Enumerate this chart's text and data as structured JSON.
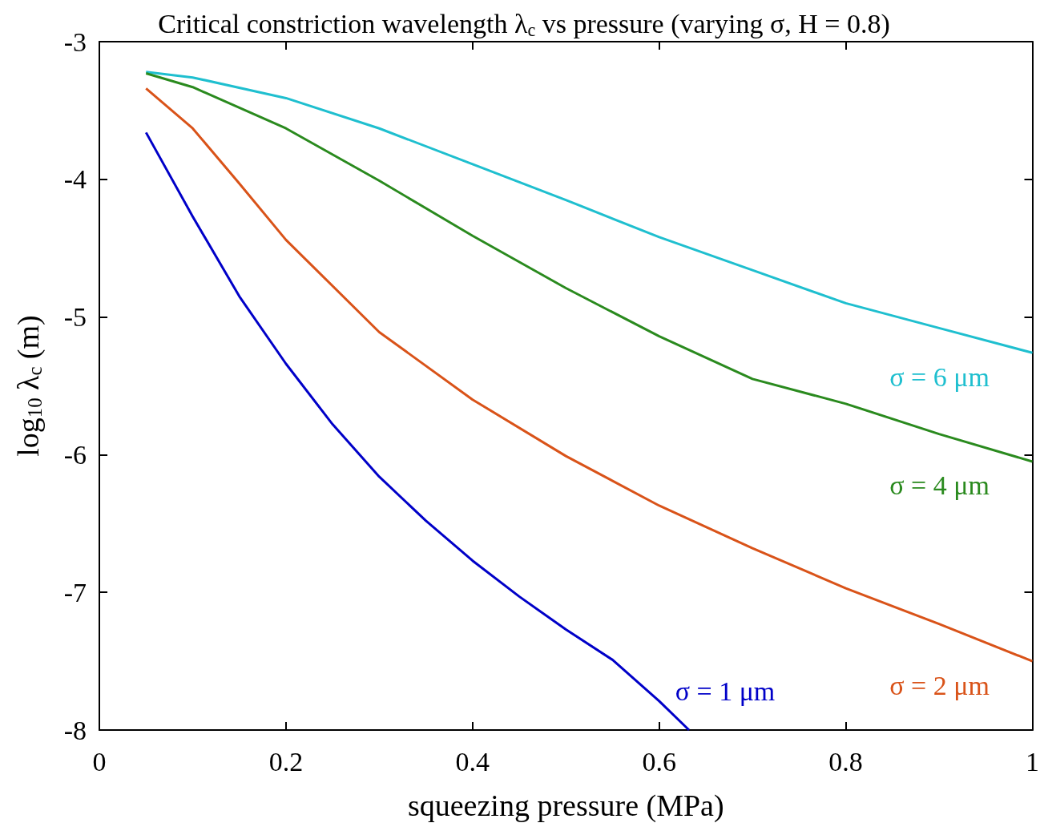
{
  "chart_data": {
    "type": "line",
    "title": "Critical constriction wavelength λ$_{c}$ vs pressure (varying σ, H = 0.8)",
    "xlabel": "squeezing pressure (MPa)",
    "ylabel": "log$_{10}$ λ$_{c}$ (m)",
    "xlim": [
      0,
      1
    ],
    "xticks": [
      0,
      0.2,
      0.4,
      0.6,
      0.8,
      1
    ],
    "ylim": [
      -8,
      -3
    ],
    "yticks": [
      -8,
      -7,
      -6,
      -5,
      -4,
      -3
    ],
    "grid": false,
    "series": [
      {
        "name": "σ = 6 μm",
        "color": "#1fbfcf",
        "x": [
          0.05,
          0.1,
          0.2,
          0.3,
          0.4,
          0.5,
          0.6,
          0.7,
          0.8,
          0.9,
          1.0
        ],
        "values": [
          -3.22,
          -3.26,
          -3.41,
          -3.63,
          -3.89,
          -4.15,
          -4.42,
          -4.66,
          -4.9,
          -5.08,
          -5.26
        ]
      },
      {
        "name": "σ = 4 μm",
        "color": "#2a8a1e",
        "x": [
          0.05,
          0.1,
          0.2,
          0.3,
          0.4,
          0.5,
          0.6,
          0.7,
          0.8,
          0.9,
          1.0
        ],
        "values": [
          -3.23,
          -3.33,
          -3.63,
          -4.01,
          -4.41,
          -4.79,
          -5.14,
          -5.45,
          -5.63,
          -5.85,
          -6.05
        ]
      },
      {
        "name": "σ = 2 μm",
        "color": "#d95319",
        "x": [
          0.05,
          0.1,
          0.15,
          0.2,
          0.3,
          0.4,
          0.5,
          0.6,
          0.7,
          0.8,
          0.9,
          1.0
        ],
        "values": [
          -3.34,
          -3.63,
          -4.03,
          -4.44,
          -5.11,
          -5.6,
          -6.01,
          -6.37,
          -6.68,
          -6.97,
          -7.23,
          -7.5
        ]
      },
      {
        "name": "σ = 1 μm",
        "color": "#0000c8",
        "x": [
          0.05,
          0.1,
          0.15,
          0.2,
          0.25,
          0.3,
          0.35,
          0.4,
          0.45,
          0.5,
          0.55,
          0.6,
          0.632
        ],
        "values": [
          -3.66,
          -4.27,
          -4.85,
          -5.34,
          -5.78,
          -6.16,
          -6.48,
          -6.77,
          -7.03,
          -7.27,
          -7.49,
          -7.79,
          -8
        ]
      }
    ]
  }
}
